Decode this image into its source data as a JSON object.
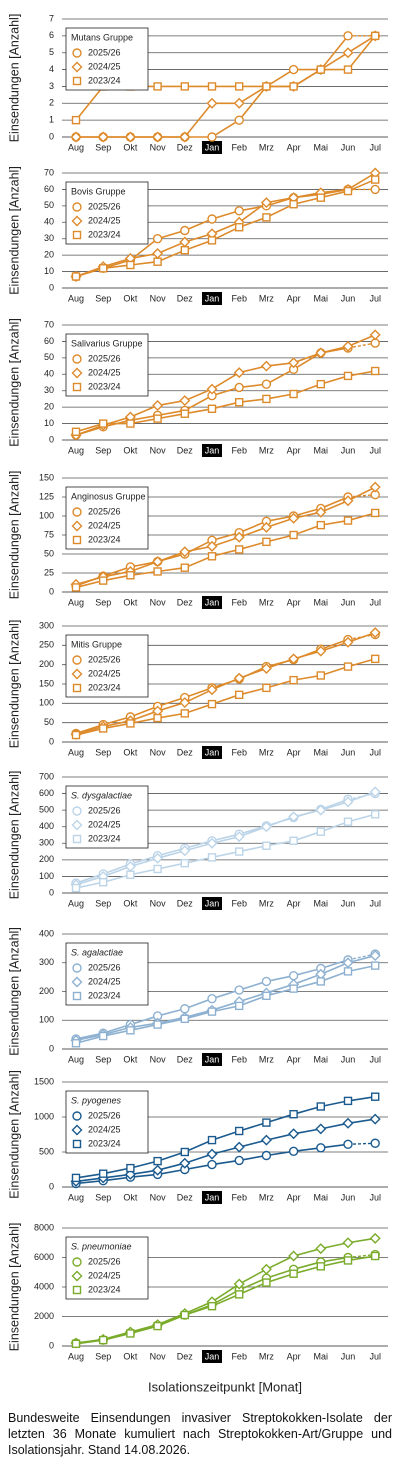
{
  "chart_data": [
    {
      "type": "line",
      "y_label": "Einsendungen [Anzahl]",
      "legend_title": "Mutans Gruppe",
      "legend_title_italic": false,
      "categories": [
        "Aug",
        "Sep",
        "Okt",
        "Nov",
        "Dez",
        "Jan",
        "Feb",
        "Mrz",
        "Apr",
        "Mai",
        "Jun",
        "Jul"
      ],
      "highlight_index": 5,
      "ylim": [
        0,
        7
      ],
      "yticks": [
        0,
        1,
        2,
        3,
        4,
        5,
        6,
        7
      ],
      "grid": true,
      "series": [
        {
          "name": "2025/26",
          "color": "#dd8a2b",
          "marker": "circle",
          "dash_last": true,
          "values": [
            0,
            0,
            0,
            0,
            0,
            0,
            1,
            3,
            4,
            4,
            6,
            6
          ]
        },
        {
          "name": "2024/25",
          "color": "#dd8a2b",
          "marker": "diamond",
          "dash_last": false,
          "values": [
            0,
            0,
            0,
            0,
            0,
            2,
            2,
            3,
            3,
            4,
            5,
            6
          ]
        },
        {
          "name": "2023/24",
          "color": "#dd8a2b",
          "marker": "square",
          "dash_last": false,
          "values": [
            1,
            3,
            3,
            3,
            3,
            3,
            3,
            3,
            3,
            4,
            4,
            6
          ]
        }
      ]
    },
    {
      "type": "line",
      "y_label": "Einsendungen [Anzahl]",
      "legend_title": "Bovis Gruppe",
      "legend_title_italic": false,
      "categories": [
        "Aug",
        "Sep",
        "Okt",
        "Nov",
        "Dez",
        "Jan",
        "Feb",
        "Mrz",
        "Apr",
        "Mai",
        "Jun",
        "Jul"
      ],
      "highlight_index": 5,
      "ylim": [
        0,
        70
      ],
      "yticks": [
        0,
        10,
        20,
        30,
        40,
        50,
        60,
        70
      ],
      "grid": true,
      "series": [
        {
          "name": "2025/26",
          "color": "#dd8a2b",
          "marker": "circle",
          "dash_last": true,
          "values": [
            7,
            12,
            17,
            30,
            35,
            42,
            47,
            50,
            55,
            57,
            60,
            60
          ]
        },
        {
          "name": "2024/25",
          "color": "#dd8a2b",
          "marker": "diamond",
          "dash_last": false,
          "values": [
            7,
            13,
            18,
            21,
            28,
            33,
            40,
            52,
            55,
            58,
            60,
            70
          ]
        },
        {
          "name": "2023/24",
          "color": "#dd8a2b",
          "marker": "square",
          "dash_last": false,
          "values": [
            7,
            12,
            14,
            16,
            23,
            29,
            37,
            43,
            51,
            55,
            59,
            66
          ]
        }
      ]
    },
    {
      "type": "line",
      "y_label": "Einsendungen [Anzahl]",
      "legend_title": "Salivarius Gruppe",
      "legend_title_italic": false,
      "categories": [
        "Aug",
        "Sep",
        "Okt",
        "Nov",
        "Dez",
        "Jan",
        "Feb",
        "Mrz",
        "Apr",
        "Mai",
        "Jun",
        "Jul"
      ],
      "highlight_index": 5,
      "ylim": [
        0,
        70
      ],
      "yticks": [
        0,
        10,
        20,
        30,
        40,
        50,
        60,
        70
      ],
      "grid": true,
      "series": [
        {
          "name": "2025/26",
          "color": "#dd8a2b",
          "marker": "circle",
          "dash_last": true,
          "values": [
            3,
            8,
            12,
            15,
            18,
            27,
            32,
            34,
            43,
            53,
            56,
            59
          ]
        },
        {
          "name": "2024/25",
          "color": "#dd8a2b",
          "marker": "diamond",
          "dash_last": false,
          "values": [
            3,
            9,
            14,
            21,
            24,
            31,
            41,
            45,
            47,
            53,
            57,
            64
          ]
        },
        {
          "name": "2023/24",
          "color": "#dd8a2b",
          "marker": "square",
          "dash_last": false,
          "values": [
            5,
            10,
            10,
            13,
            16,
            19,
            23,
            25,
            28,
            34,
            39,
            42
          ]
        }
      ]
    },
    {
      "type": "line",
      "y_label": "Einsendungen [Anzahl]",
      "legend_title": "Anginosus Gruppe",
      "legend_title_italic": false,
      "categories": [
        "Aug",
        "Sep",
        "Okt",
        "Nov",
        "Dez",
        "Jan",
        "Feb",
        "Mrz",
        "Apr",
        "Mai",
        "Jun",
        "Jul"
      ],
      "highlight_index": 5,
      "ylim": [
        0,
        150
      ],
      "yticks": [
        0,
        25,
        50,
        75,
        100,
        125,
        150
      ],
      "grid": true,
      "series": [
        {
          "name": "2025/26",
          "color": "#dd8a2b",
          "marker": "circle",
          "dash_last": true,
          "values": [
            8,
            21,
            33,
            40,
            50,
            68,
            78,
            93,
            100,
            110,
            125,
            128
          ]
        },
        {
          "name": "2024/25",
          "color": "#dd8a2b",
          "marker": "diamond",
          "dash_last": false,
          "values": [
            10,
            20,
            27,
            40,
            53,
            60,
            72,
            85,
            97,
            105,
            120,
            138
          ]
        },
        {
          "name": "2023/24",
          "color": "#dd8a2b",
          "marker": "square",
          "dash_last": false,
          "values": [
            6,
            15,
            22,
            27,
            32,
            47,
            56,
            66,
            75,
            88,
            94,
            104
          ]
        }
      ]
    },
    {
      "type": "line",
      "y_label": "Einsendungen [Anzahl]",
      "legend_title": "Mitis Gruppe",
      "legend_title_italic": false,
      "categories": [
        "Aug",
        "Sep",
        "Okt",
        "Nov",
        "Dez",
        "Jan",
        "Feb",
        "Mrz",
        "Apr",
        "Mai",
        "Jun",
        "Jul"
      ],
      "highlight_index": 5,
      "ylim": [
        0,
        300
      ],
      "yticks": [
        0,
        50,
        100,
        150,
        200,
        250,
        300
      ],
      "grid": true,
      "series": [
        {
          "name": "2025/26",
          "color": "#dd8a2b",
          "marker": "circle",
          "dash_last": true,
          "values": [
            22,
            45,
            65,
            92,
            115,
            140,
            163,
            195,
            213,
            240,
            265,
            278
          ]
        },
        {
          "name": "2024/25",
          "color": "#dd8a2b",
          "marker": "diamond",
          "dash_last": false,
          "values": [
            20,
            40,
            55,
            80,
            102,
            135,
            165,
            190,
            215,
            235,
            258,
            283
          ]
        },
        {
          "name": "2023/24",
          "color": "#dd8a2b",
          "marker": "square",
          "dash_last": false,
          "values": [
            18,
            35,
            48,
            62,
            74,
            98,
            122,
            140,
            160,
            172,
            195,
            215
          ]
        }
      ]
    },
    {
      "type": "line",
      "y_label": "Einsendungen [Anzahl]",
      "legend_title": "S. dysgalactiae",
      "legend_title_italic": true,
      "categories": [
        "Aug",
        "Sep",
        "Okt",
        "Nov",
        "Dez",
        "Jan",
        "Feb",
        "Mrz",
        "Apr",
        "Mai",
        "Jun",
        "Jul"
      ],
      "highlight_index": 5,
      "ylim": [
        0,
        700
      ],
      "yticks": [
        0,
        100,
        200,
        300,
        400,
        500,
        600,
        700
      ],
      "grid": true,
      "series": [
        {
          "name": "2025/26",
          "color": "#bcd4e8",
          "marker": "circle",
          "dash_last": true,
          "values": [
            60,
            115,
            175,
            225,
            270,
            315,
            355,
            405,
            455,
            505,
            565,
            600
          ]
        },
        {
          "name": "2024/25",
          "color": "#bcd4e8",
          "marker": "diamond",
          "dash_last": false,
          "values": [
            50,
            100,
            160,
            210,
            255,
            300,
            340,
            400,
            460,
            500,
            550,
            610
          ]
        },
        {
          "name": "2023/24",
          "color": "#bcd4e8",
          "marker": "square",
          "dash_last": false,
          "values": [
            30,
            65,
            110,
            145,
            180,
            215,
            250,
            285,
            315,
            370,
            430,
            475
          ]
        }
      ]
    },
    {
      "type": "line",
      "y_label": "Einsendungen [Anzahl]",
      "legend_title": "S. agalactiae",
      "legend_title_italic": true,
      "categories": [
        "Aug",
        "Sep",
        "Okt",
        "Nov",
        "Dez",
        "Jan",
        "Feb",
        "Mrz",
        "Apr",
        "Mai",
        "Jun",
        "Jul"
      ],
      "highlight_index": 5,
      "ylim": [
        0,
        400
      ],
      "yticks": [
        0,
        100,
        200,
        300,
        400
      ],
      "grid": true,
      "series": [
        {
          "name": "2025/26",
          "color": "#8eb1d1",
          "marker": "circle",
          "dash_last": true,
          "values": [
            35,
            55,
            85,
            115,
            140,
            175,
            205,
            235,
            255,
            280,
            310,
            330
          ]
        },
        {
          "name": "2024/25",
          "color": "#8eb1d1",
          "marker": "diamond",
          "dash_last": false,
          "values": [
            30,
            50,
            75,
            90,
            110,
            135,
            165,
            195,
            225,
            260,
            300,
            325
          ]
        },
        {
          "name": "2023/24",
          "color": "#8eb1d1",
          "marker": "square",
          "dash_last": false,
          "values": [
            20,
            45,
            65,
            85,
            105,
            130,
            150,
            185,
            210,
            235,
            270,
            290
          ]
        }
      ]
    },
    {
      "type": "line",
      "y_label": "Einsendungen [Anzahl]",
      "legend_title": "S. pyogenes",
      "legend_title_italic": true,
      "categories": [
        "Aug",
        "Sep",
        "Okt",
        "Nov",
        "Dez",
        "Jan",
        "Feb",
        "Mrz",
        "Apr",
        "Mai",
        "Jun",
        "Jul"
      ],
      "highlight_index": 5,
      "ylim": [
        0,
        1500
      ],
      "yticks": [
        0,
        500,
        1000,
        1500
      ],
      "grid": true,
      "series": [
        {
          "name": "2025/26",
          "color": "#1b5a8e",
          "marker": "circle",
          "dash_last": true,
          "values": [
            50,
            90,
            140,
            180,
            250,
            320,
            380,
            450,
            510,
            560,
            610,
            625
          ]
        },
        {
          "name": "2024/25",
          "color": "#1b5a8e",
          "marker": "diamond",
          "dash_last": false,
          "values": [
            80,
            130,
            180,
            240,
            340,
            470,
            570,
            670,
            760,
            830,
            910,
            970
          ]
        },
        {
          "name": "2023/24",
          "color": "#1b5a8e",
          "marker": "square",
          "dash_last": false,
          "values": [
            130,
            190,
            270,
            370,
            500,
            670,
            800,
            920,
            1040,
            1150,
            1230,
            1290
          ]
        }
      ]
    },
    {
      "type": "line",
      "y_label": "Einsendungen [Anzahl]",
      "legend_title": "S. pneumoniae",
      "legend_title_italic": true,
      "categories": [
        "Aug",
        "Sep",
        "Okt",
        "Nov",
        "Dez",
        "Jan",
        "Feb",
        "Mrz",
        "Apr",
        "Mai",
        "Jun",
        "Jul"
      ],
      "highlight_index": 5,
      "ylim": [
        0,
        8000
      ],
      "yticks": [
        0,
        2000,
        4000,
        6000,
        8000
      ],
      "grid": true,
      "series": [
        {
          "name": "2025/26",
          "color": "#7aab2a",
          "marker": "circle",
          "dash_last": true,
          "values": [
            200,
            400,
            900,
            1400,
            2100,
            2800,
            3800,
            4600,
            5200,
            5700,
            6000,
            6200
          ]
        },
        {
          "name": "2024/25",
          "color": "#7aab2a",
          "marker": "diamond",
          "dash_last": false,
          "values": [
            200,
            450,
            950,
            1450,
            2200,
            3000,
            4200,
            5200,
            6100,
            6600,
            7000,
            7300
          ]
        },
        {
          "name": "2023/24",
          "color": "#7aab2a",
          "marker": "square",
          "dash_last": false,
          "values": [
            150,
            400,
            850,
            1350,
            2100,
            2700,
            3500,
            4300,
            4900,
            5400,
            5800,
            6100
          ]
        }
      ]
    }
  ],
  "x_label": "Isolationszeitpunkt [Monat]",
  "caption": "Bundesweite Einsendungen invasiver Streptokokken-Isolate der letzten 36 Monate kumuliert nach Streptokokken-Art/Gruppe und Isolationsjahr. Stand 14.08.2026."
}
